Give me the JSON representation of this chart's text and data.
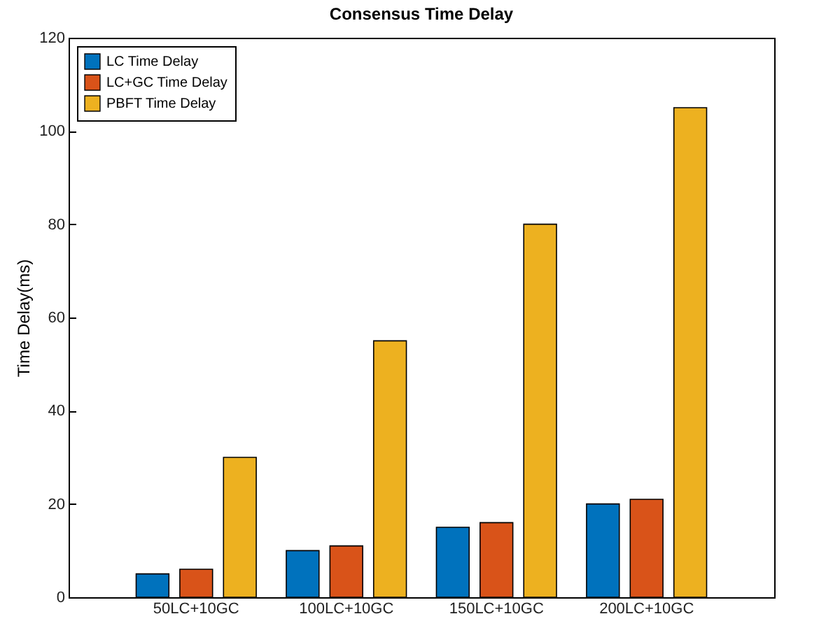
{
  "chart_data": {
    "type": "bar",
    "title": "Consensus Time Delay",
    "ylabel": "Time Delay(ms)",
    "categories": [
      "50LC+10GC",
      "100LC+10GC",
      "150LC+10GC",
      "200LC+10GC"
    ],
    "series": [
      {
        "name": "LC Time Delay",
        "color": "#0072bd",
        "values": [
          5,
          10,
          15,
          20
        ]
      },
      {
        "name": "LC+GC Time Delay",
        "color": "#d95319",
        "values": [
          6,
          11,
          16,
          21
        ]
      },
      {
        "name": "PBFT Time Delay",
        "color": "#edb120",
        "values": [
          30,
          55,
          80,
          105
        ]
      }
    ],
    "ylim": [
      0,
      120
    ],
    "yticks": [
      0,
      20,
      40,
      60,
      80,
      100,
      120
    ],
    "grid": false,
    "legend": "top left"
  }
}
